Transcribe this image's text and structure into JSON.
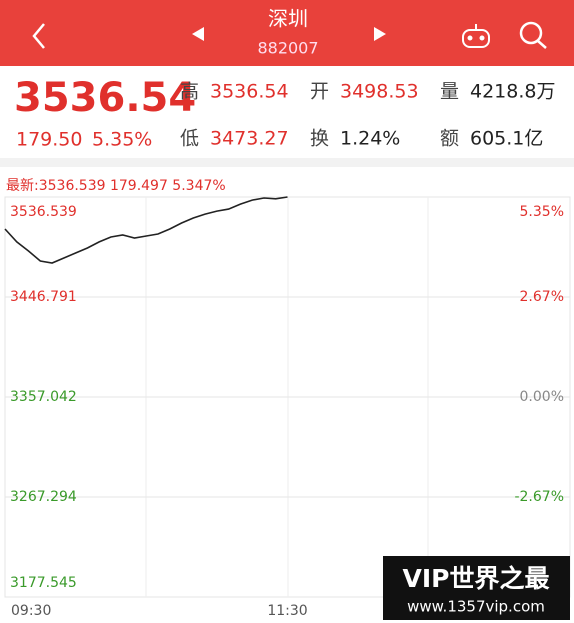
{
  "header": {
    "title": "深圳",
    "code": "882007"
  },
  "quote": {
    "price": "3536.54",
    "change": "179.50",
    "change_pct": "5.35%",
    "stats": [
      {
        "label": "高",
        "value": "3536.54"
      },
      {
        "label": "开",
        "value": "3498.53"
      },
      {
        "label": "量",
        "value": "4218.8万"
      },
      {
        "label": "低",
        "value": "3473.27"
      },
      {
        "label": "换",
        "value": "1.24%"
      },
      {
        "label": "额",
        "value": "605.1亿"
      }
    ]
  },
  "chart_data": {
    "type": "line",
    "subtitle": "最新:3536.539 179.497 5.347%",
    "x": [
      "09:30",
      "09:35",
      "09:40",
      "09:45",
      "09:50",
      "09:55",
      "10:00",
      "10:05",
      "10:10",
      "10:15",
      "10:20",
      "10:25",
      "10:30",
      "10:35",
      "10:40",
      "10:45",
      "10:50",
      "10:55",
      "11:00",
      "11:05",
      "11:10",
      "11:15",
      "11:20",
      "11:25",
      "11:30"
    ],
    "values": [
      3507.8,
      3496.2,
      3488.1,
      3479.1,
      3477.3,
      3481.8,
      3486.3,
      3490.8,
      3496.2,
      3500.6,
      3502.4,
      3499.7,
      3501.5,
      3503.3,
      3507.8,
      3513.2,
      3517.7,
      3521.2,
      3523.9,
      3525.7,
      3530.2,
      3533.8,
      3535.6,
      3534.9,
      3536.5
    ],
    "color": "#222222",
    "xlim": [
      "09:30",
      "15:00"
    ],
    "xticks": [
      "09:30",
      "11:30"
    ],
    "ylim": [
      3177.545,
      3536.539
    ],
    "yticks": [
      3536.539,
      3446.791,
      3357.042,
      3267.294,
      3177.545
    ],
    "y2lim": [
      -5.35,
      5.35
    ],
    "y2ticks": [
      {
        "value": 5.35,
        "label": "5.35%"
      },
      {
        "value": 2.67,
        "label": "2.67%"
      },
      {
        "value": 0,
        "label": "0.00%"
      },
      {
        "value": -2.67,
        "label": "-2.67%"
      }
    ],
    "up_color": "#e0302c",
    "down_color": "#3a9a2a",
    "flat_color": "#888888",
    "grid": true
  },
  "watermark": {
    "title": "VIP世界之最",
    "url": "www.1357vip.com"
  }
}
